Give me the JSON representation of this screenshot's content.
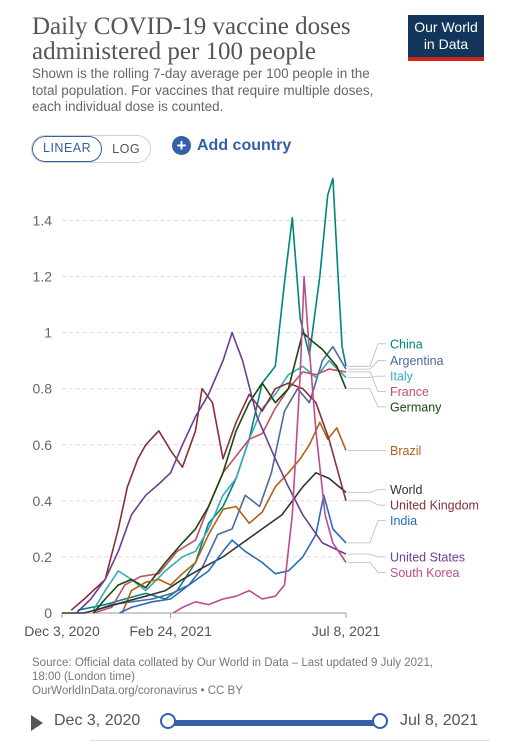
{
  "header": {
    "title": "Daily COVID-19 vaccine doses administered per 100 people",
    "subtitle": "Shown is the rolling 7-day average per 100 people in the total population. For vaccines that require multiple doses, each individual dose is counted.",
    "logo_line1": "Our World",
    "logo_line2": "in Data",
    "logo_colors": {
      "background": "#12355b",
      "stripe": "#ce261e"
    }
  },
  "controls": {
    "linear_label": "LINEAR",
    "log_label": "LOG",
    "active_scale": "LINEAR",
    "add_country_label": "Add country",
    "accent": "#3360a9"
  },
  "chart_data": {
    "type": "line",
    "title": "Daily COVID-19 vaccine doses administered per 100 people",
    "xlabel": "",
    "ylabel": "",
    "x_start": "2020-12-03",
    "x_end": "2021-07-08",
    "x_ticks": [
      {
        "date": "2020-12-03",
        "label": "Dec 3, 2020"
      },
      {
        "date": "2021-02-24",
        "label": "Feb 24, 2021"
      },
      {
        "date": "2021-07-08",
        "label": "Jul 8, 2021"
      }
    ],
    "y_ticks": [
      {
        "value": 0,
        "label": "0"
      },
      {
        "value": 0.2,
        "label": "0.2"
      },
      {
        "value": 0.4,
        "label": "0.4"
      },
      {
        "value": 0.6,
        "label": "0.6"
      },
      {
        "value": 0.8,
        "label": "0.8"
      },
      {
        "value": 1.0,
        "label": "1"
      },
      {
        "value": 1.2,
        "label": "1.2"
      },
      {
        "value": 1.4,
        "label": "1.4"
      }
    ],
    "ylim": [
      0,
      1.58
    ],
    "grid": "horizontal dashed",
    "legend": "right (direct line labels)",
    "series": [
      {
        "name": "China",
        "color": "#00847e",
        "points": [
          [
            "2020-12-15",
            0.01
          ],
          [
            "2021-01-05",
            0.03
          ],
          [
            "2021-01-20",
            0.05
          ],
          [
            "2021-02-05",
            0.07
          ],
          [
            "2021-02-20",
            0.05
          ],
          [
            "2021-03-01",
            0.08
          ],
          [
            "2021-03-15",
            0.18
          ],
          [
            "2021-03-25",
            0.32
          ],
          [
            "2021-04-05",
            0.38
          ],
          [
            "2021-04-15",
            0.48
          ],
          [
            "2021-04-25",
            0.62
          ],
          [
            "2021-05-05",
            0.82
          ],
          [
            "2021-05-15",
            0.88
          ],
          [
            "2021-05-22",
            1.18
          ],
          [
            "2021-05-28",
            1.41
          ],
          [
            "2021-06-03",
            1.05
          ],
          [
            "2021-06-10",
            0.92
          ],
          [
            "2021-06-18",
            1.2
          ],
          [
            "2021-06-24",
            1.49
          ],
          [
            "2021-06-28",
            1.55
          ],
          [
            "2021-07-02",
            1.2
          ],
          [
            "2021-07-05",
            0.95
          ],
          [
            "2021-07-08",
            0.88
          ]
        ]
      },
      {
        "name": "Argentina",
        "color": "#4c6a9c",
        "points": [
          [
            "2020-12-29",
            0.01
          ],
          [
            "2021-01-10",
            0.03
          ],
          [
            "2021-01-25",
            0.04
          ],
          [
            "2021-02-10",
            0.05
          ],
          [
            "2021-02-25",
            0.07
          ],
          [
            "2021-03-10",
            0.1
          ],
          [
            "2021-03-20",
            0.16
          ],
          [
            "2021-04-01",
            0.28
          ],
          [
            "2021-04-12",
            0.3
          ],
          [
            "2021-04-22",
            0.42
          ],
          [
            "2021-05-03",
            0.38
          ],
          [
            "2021-05-12",
            0.5
          ],
          [
            "2021-05-22",
            0.72
          ],
          [
            "2021-06-01",
            0.8
          ],
          [
            "2021-06-10",
            0.75
          ],
          [
            "2021-06-20",
            0.9
          ],
          [
            "2021-06-28",
            0.95
          ],
          [
            "2021-07-08",
            0.87
          ]
        ]
      },
      {
        "name": "Italy",
        "color": "#38aaba",
        "points": [
          [
            "2020-12-27",
            0.01
          ],
          [
            "2021-01-05",
            0.08
          ],
          [
            "2021-01-15",
            0.15
          ],
          [
            "2021-01-25",
            0.12
          ],
          [
            "2021-02-05",
            0.08
          ],
          [
            "2021-02-20",
            0.15
          ],
          [
            "2021-03-05",
            0.2
          ],
          [
            "2021-03-15",
            0.22
          ],
          [
            "2021-03-25",
            0.3
          ],
          [
            "2021-04-05",
            0.42
          ],
          [
            "2021-04-15",
            0.48
          ],
          [
            "2021-04-25",
            0.62
          ],
          [
            "2021-05-05",
            0.73
          ],
          [
            "2021-05-15",
            0.78
          ],
          [
            "2021-05-25",
            0.85
          ],
          [
            "2021-06-05",
            0.88
          ],
          [
            "2021-06-15",
            0.84
          ],
          [
            "2021-06-25",
            0.9
          ],
          [
            "2021-07-08",
            0.84
          ]
        ]
      },
      {
        "name": "France",
        "color": "#c15065",
        "points": [
          [
            "2020-12-27",
            0.0
          ],
          [
            "2021-01-10",
            0.02
          ],
          [
            "2021-01-20",
            0.1
          ],
          [
            "2021-02-01",
            0.13
          ],
          [
            "2021-02-15",
            0.14
          ],
          [
            "2021-03-01",
            0.22
          ],
          [
            "2021-03-15",
            0.26
          ],
          [
            "2021-03-25",
            0.38
          ],
          [
            "2021-04-05",
            0.5
          ],
          [
            "2021-04-15",
            0.56
          ],
          [
            "2021-04-25",
            0.62
          ],
          [
            "2021-05-05",
            0.64
          ],
          [
            "2021-05-15",
            0.73
          ],
          [
            "2021-05-25",
            0.8
          ],
          [
            "2021-06-05",
            0.86
          ],
          [
            "2021-06-15",
            0.85
          ],
          [
            "2021-06-25",
            0.87
          ],
          [
            "2021-07-08",
            0.86
          ]
        ]
      },
      {
        "name": "Germany",
        "color": "#18470f",
        "points": [
          [
            "2020-12-27",
            0.0
          ],
          [
            "2021-01-05",
            0.05
          ],
          [
            "2021-01-15",
            0.1
          ],
          [
            "2021-01-25",
            0.12
          ],
          [
            "2021-02-05",
            0.09
          ],
          [
            "2021-02-20",
            0.18
          ],
          [
            "2021-03-05",
            0.25
          ],
          [
            "2021-03-15",
            0.3
          ],
          [
            "2021-03-25",
            0.38
          ],
          [
            "2021-04-05",
            0.5
          ],
          [
            "2021-04-15",
            0.65
          ],
          [
            "2021-04-25",
            0.75
          ],
          [
            "2021-05-05",
            0.82
          ],
          [
            "2021-05-15",
            0.75
          ],
          [
            "2021-05-25",
            0.8
          ],
          [
            "2021-06-05",
            1.0
          ],
          [
            "2021-06-12",
            0.97
          ],
          [
            "2021-06-20",
            0.94
          ],
          [
            "2021-07-01",
            0.88
          ],
          [
            "2021-07-08",
            0.8
          ]
        ]
      },
      {
        "name": "Brazil",
        "color": "#b16214",
        "points": [
          [
            "2021-01-18",
            0.0
          ],
          [
            "2021-01-25",
            0.08
          ],
          [
            "2021-02-05",
            0.11
          ],
          [
            "2021-02-15",
            0.12
          ],
          [
            "2021-02-24",
            0.1
          ],
          [
            "2021-03-05",
            0.14
          ],
          [
            "2021-03-15",
            0.18
          ],
          [
            "2021-03-25",
            0.28
          ],
          [
            "2021-04-05",
            0.37
          ],
          [
            "2021-04-15",
            0.38
          ],
          [
            "2021-04-25",
            0.32
          ],
          [
            "2021-05-05",
            0.36
          ],
          [
            "2021-05-15",
            0.45
          ],
          [
            "2021-05-25",
            0.5
          ],
          [
            "2021-06-03",
            0.55
          ],
          [
            "2021-06-10",
            0.6
          ],
          [
            "2021-06-18",
            0.68
          ],
          [
            "2021-06-24",
            0.62
          ],
          [
            "2021-07-01",
            0.66
          ],
          [
            "2021-07-08",
            0.58
          ]
        ]
      },
      {
        "name": "World",
        "color": "#333333",
        "points": [
          [
            "2020-12-03",
            0.0
          ],
          [
            "2020-12-20",
            0.0
          ],
          [
            "2021-01-05",
            0.02
          ],
          [
            "2021-01-20",
            0.04
          ],
          [
            "2021-02-05",
            0.06
          ],
          [
            "2021-02-20",
            0.08
          ],
          [
            "2021-03-05",
            0.12
          ],
          [
            "2021-03-20",
            0.16
          ],
          [
            "2021-04-05",
            0.2
          ],
          [
            "2021-04-20",
            0.25
          ],
          [
            "2021-05-05",
            0.3
          ],
          [
            "2021-05-20",
            0.35
          ],
          [
            "2021-06-05",
            0.45
          ],
          [
            "2021-06-15",
            0.5
          ],
          [
            "2021-06-25",
            0.48
          ],
          [
            "2021-07-08",
            0.43
          ]
        ]
      },
      {
        "name": "United Kingdom",
        "color": "#883039",
        "points": [
          [
            "2020-12-10",
            0.01
          ],
          [
            "2020-12-20",
            0.05
          ],
          [
            "2021-01-05",
            0.12
          ],
          [
            "2021-01-15",
            0.3
          ],
          [
            "2021-01-22",
            0.45
          ],
          [
            "2021-01-30",
            0.55
          ],
          [
            "2021-02-05",
            0.6
          ],
          [
            "2021-02-15",
            0.65
          ],
          [
            "2021-02-24",
            0.58
          ],
          [
            "2021-03-05",
            0.52
          ],
          [
            "2021-03-15",
            0.65
          ],
          [
            "2021-03-20",
            0.8
          ],
          [
            "2021-03-28",
            0.75
          ],
          [
            "2021-04-05",
            0.55
          ],
          [
            "2021-04-15",
            0.68
          ],
          [
            "2021-04-25",
            0.78
          ],
          [
            "2021-05-05",
            0.72
          ],
          [
            "2021-05-15",
            0.8
          ],
          [
            "2021-05-25",
            0.82
          ],
          [
            "2021-06-05",
            0.8
          ],
          [
            "2021-06-15",
            0.75
          ],
          [
            "2021-06-25",
            0.62
          ],
          [
            "2021-07-08",
            0.4
          ]
        ]
      },
      {
        "name": "India",
        "color": "#286bbb",
        "points": [
          [
            "2021-01-16",
            0.0
          ],
          [
            "2021-01-25",
            0.02
          ],
          [
            "2021-02-10",
            0.04
          ],
          [
            "2021-02-24",
            0.05
          ],
          [
            "2021-03-10",
            0.1
          ],
          [
            "2021-03-25",
            0.15
          ],
          [
            "2021-04-05",
            0.22
          ],
          [
            "2021-04-12",
            0.26
          ],
          [
            "2021-04-22",
            0.22
          ],
          [
            "2021-05-05",
            0.18
          ],
          [
            "2021-05-15",
            0.14
          ],
          [
            "2021-05-25",
            0.15
          ],
          [
            "2021-06-05",
            0.2
          ],
          [
            "2021-06-15",
            0.28
          ],
          [
            "2021-06-21",
            0.42
          ],
          [
            "2021-06-28",
            0.3
          ],
          [
            "2021-07-08",
            0.25
          ]
        ]
      },
      {
        "name": "United States",
        "color": "#6d3e91",
        "points": [
          [
            "2020-12-14",
            0.0
          ],
          [
            "2020-12-25",
            0.05
          ],
          [
            "2021-01-05",
            0.12
          ],
          [
            "2021-01-15",
            0.22
          ],
          [
            "2021-01-25",
            0.35
          ],
          [
            "2021-02-05",
            0.42
          ],
          [
            "2021-02-15",
            0.46
          ],
          [
            "2021-02-24",
            0.5
          ],
          [
            "2021-03-05",
            0.6
          ],
          [
            "2021-03-15",
            0.7
          ],
          [
            "2021-03-25",
            0.78
          ],
          [
            "2021-04-05",
            0.9
          ],
          [
            "2021-04-12",
            1.0
          ],
          [
            "2021-04-20",
            0.9
          ],
          [
            "2021-05-01",
            0.7
          ],
          [
            "2021-05-15",
            0.55
          ],
          [
            "2021-05-25",
            0.45
          ],
          [
            "2021-06-05",
            0.35
          ],
          [
            "2021-06-20",
            0.25
          ],
          [
            "2021-07-08",
            0.21
          ]
        ]
      },
      {
        "name": "South Korea",
        "color": "#bc4c8e",
        "points": [
          [
            "2021-02-26",
            0.0
          ],
          [
            "2021-03-05",
            0.02
          ],
          [
            "2021-03-15",
            0.04
          ],
          [
            "2021-03-25",
            0.03
          ],
          [
            "2021-04-05",
            0.05
          ],
          [
            "2021-04-15",
            0.06
          ],
          [
            "2021-04-25",
            0.08
          ],
          [
            "2021-05-05",
            0.05
          ],
          [
            "2021-05-15",
            0.06
          ],
          [
            "2021-05-22",
            0.1
          ],
          [
            "2021-05-28",
            0.35
          ],
          [
            "2021-06-03",
            0.85
          ],
          [
            "2021-06-06",
            1.2
          ],
          [
            "2021-06-09",
            1.0
          ],
          [
            "2021-06-15",
            0.65
          ],
          [
            "2021-06-22",
            0.35
          ],
          [
            "2021-06-28",
            0.25
          ],
          [
            "2021-07-08",
            0.18
          ]
        ]
      }
    ],
    "labels": [
      {
        "name": "China",
        "color": "#00847e",
        "label_value": 0.96
      },
      {
        "name": "Argentina",
        "color": "#4c6a9c",
        "label_value": 0.9
      },
      {
        "name": "Italy",
        "color": "#38aaba",
        "label_value": 0.845
      },
      {
        "name": "France",
        "color": "#c15065",
        "label_value": 0.79
      },
      {
        "name": "Germany",
        "color": "#18470f",
        "label_value": 0.735
      },
      {
        "name": "Brazil",
        "color": "#b16214",
        "label_value": 0.58
      },
      {
        "name": "World",
        "color": "#333333",
        "label_value": 0.44
      },
      {
        "name": "United Kingdom",
        "color": "#883039",
        "label_value": 0.385
      },
      {
        "name": "India",
        "color": "#286bbb",
        "label_value": 0.33
      },
      {
        "name": "United States",
        "color": "#6d3e91",
        "label_value": 0.2
      },
      {
        "name": "South Korea",
        "color": "#bc4c8e",
        "label_value": 0.145
      }
    ]
  },
  "source": {
    "line1": "Source: Official data collated by Our World in Data – Last updated 9 July 2021,",
    "line2": "18:00 (London time)",
    "line3": "OurWorldInData.org/coronavirus • CC BY"
  },
  "timeline": {
    "start_label": "Dec 3, 2020",
    "end_label": "Jul 8, 2021"
  }
}
